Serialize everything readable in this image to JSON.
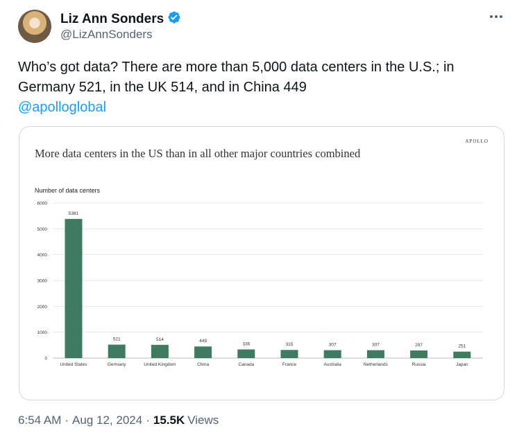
{
  "author": {
    "name": "Liz Ann Sonders",
    "handle": "@LizAnnSonders",
    "verified": true,
    "verified_color": "#1d9bf0"
  },
  "tweet": {
    "text_line1": "Who’s got data? There are more than 5,000 data centers in the U.S.; in",
    "text_line2": "Germany 521, in the UK 514, and in China 449",
    "mention": "@apolloglobal"
  },
  "footer": {
    "time": "6:54 AM",
    "separator": "·",
    "date": "Aug 12, 2024",
    "views_count": "15.5K",
    "views_label": "Views"
  },
  "chart_data": {
    "type": "bar",
    "brand": "APOLLO",
    "title": "More data centers in the US than in all other major countries combined",
    "ylabel": "Number of data centers",
    "xlabel": "",
    "ylim": [
      0,
      6000
    ],
    "yticks": [
      0,
      1000,
      2000,
      3000,
      4000,
      5000,
      6000
    ],
    "grid": true,
    "bar_color": "#3e7b60",
    "categories": [
      "United States",
      "Germany",
      "United Kingdom",
      "China",
      "Canada",
      "France",
      "Australia",
      "Netherlands",
      "Russia",
      "Japan"
    ],
    "values": [
      5381,
      521,
      514,
      449,
      336,
      315,
      307,
      307,
      297,
      251
    ]
  }
}
